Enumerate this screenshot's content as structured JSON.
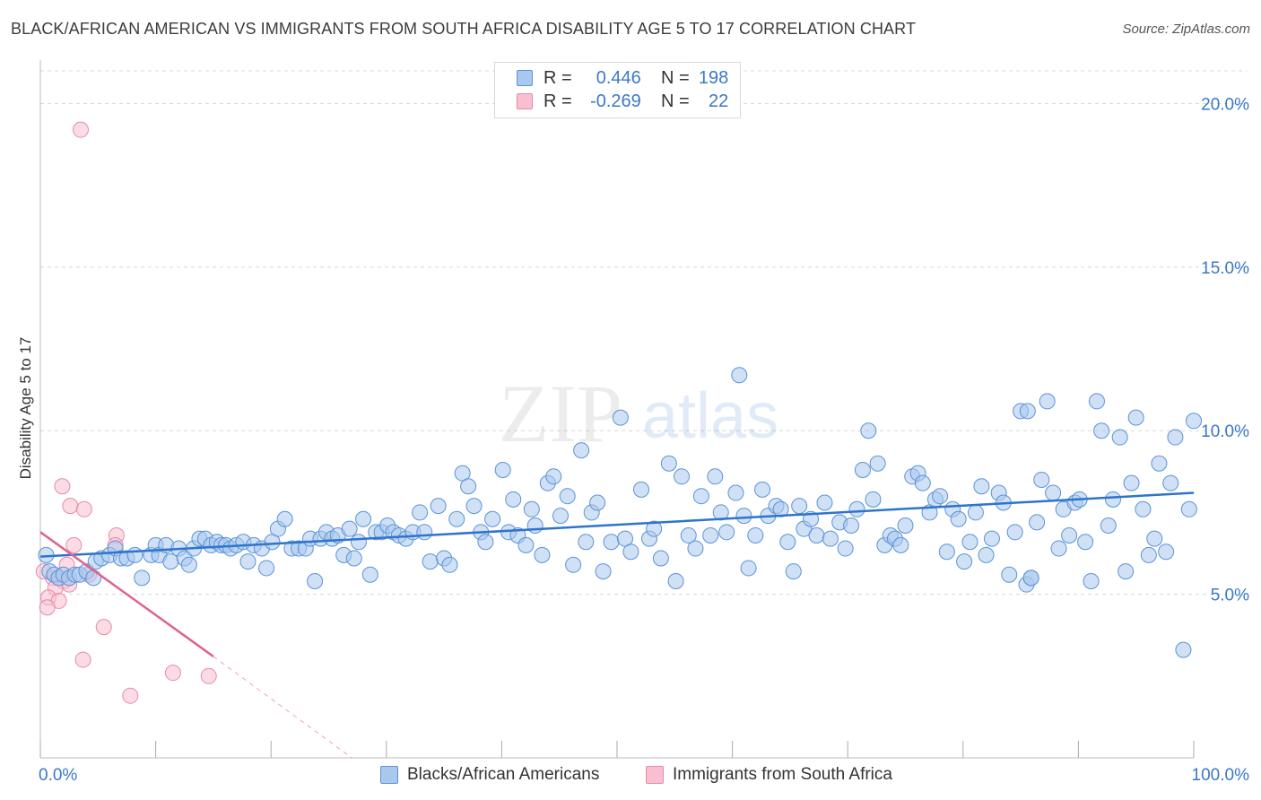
{
  "title": "BLACK/AFRICAN AMERICAN VS IMMIGRANTS FROM SOUTH AFRICA DISABILITY AGE 5 TO 17 CORRELATION CHART",
  "source": "Source: ZipAtlas.com",
  "watermark": {
    "zip": "ZIP",
    "atlas": "atlas"
  },
  "legend": {
    "rows": [
      {
        "r_label": "R =",
        "r_value": "0.446",
        "n_label": "N =",
        "n_value": "198"
      },
      {
        "r_label": "R =",
        "r_value": "-0.269",
        "n_label": "N =",
        "n_value": "22"
      }
    ]
  },
  "bottom_legend": [
    "Blacks/African Americans",
    "Immigrants from South Africa"
  ],
  "colors": {
    "blue_fill": "#a9c8ee",
    "blue_stroke": "#5b93d6",
    "blue_line": "#2e74cc",
    "pink_fill": "#f7bfd0",
    "pink_stroke": "#e98aa8",
    "pink_line": "#e0628f",
    "axis_text": "#3a78c9",
    "grid": "#d8d8d8"
  },
  "chart_data": {
    "type": "scatter",
    "title": "BLACK/AFRICAN AMERICAN VS IMMIGRANTS FROM SOUTH AFRICA DISABILITY AGE 5 TO 17 CORRELATION CHART",
    "xlabel": "",
    "ylabel": "Disability Age 5 to 17",
    "xlim": [
      0,
      100
    ],
    "ylim": [
      0,
      21
    ],
    "x_ticks": [
      0,
      10,
      20,
      30,
      40,
      50,
      60,
      70,
      80,
      90,
      100
    ],
    "x_tick_labels": [
      "0.0%",
      "100.0%"
    ],
    "y_ticks": [
      5,
      10,
      15,
      20
    ],
    "y_tick_labels": [
      "5.0%",
      "10.0%",
      "15.0%",
      "20.0%"
    ],
    "grid": "horizontal dashed",
    "series": [
      {
        "name": "Blacks/African Americans",
        "trend": {
          "x": [
            0,
            100
          ],
          "y": [
            6.15,
            8.1
          ]
        },
        "points": [
          [
            0.5,
            6.2
          ],
          [
            0.8,
            5.7
          ],
          [
            1.2,
            5.6
          ],
          [
            1.6,
            5.5
          ],
          [
            2.0,
            5.6
          ],
          [
            2.5,
            5.5
          ],
          [
            3.0,
            5.6
          ],
          [
            3.4,
            5.6
          ],
          [
            4.0,
            5.7
          ],
          [
            4.6,
            5.5
          ],
          [
            4.8,
            6.0
          ],
          [
            5.3,
            6.1
          ],
          [
            6.0,
            6.2
          ],
          [
            6.5,
            6.4
          ],
          [
            7.0,
            6.1
          ],
          [
            7.5,
            6.1
          ],
          [
            8.2,
            6.2
          ],
          [
            8.8,
            5.5
          ],
          [
            9.6,
            6.2
          ],
          [
            10.0,
            6.5
          ],
          [
            10.3,
            6.2
          ],
          [
            10.9,
            6.5
          ],
          [
            11.3,
            6.0
          ],
          [
            12.0,
            6.4
          ],
          [
            12.5,
            6.1
          ],
          [
            12.9,
            5.9
          ],
          [
            13.3,
            6.4
          ],
          [
            13.8,
            6.7
          ],
          [
            14.3,
            6.7
          ],
          [
            14.8,
            6.5
          ],
          [
            15.3,
            6.6
          ],
          [
            15.7,
            6.5
          ],
          [
            16.1,
            6.5
          ],
          [
            16.5,
            6.4
          ],
          [
            17.0,
            6.5
          ],
          [
            17.6,
            6.6
          ],
          [
            18.0,
            6.0
          ],
          [
            18.5,
            6.5
          ],
          [
            19.2,
            6.4
          ],
          [
            19.6,
            5.8
          ],
          [
            20.1,
            6.6
          ],
          [
            20.6,
            7.0
          ],
          [
            21.2,
            7.3
          ],
          [
            21.8,
            6.4
          ],
          [
            22.4,
            6.4
          ],
          [
            23.0,
            6.4
          ],
          [
            23.4,
            6.7
          ],
          [
            23.8,
            5.4
          ],
          [
            24.3,
            6.7
          ],
          [
            24.8,
            6.9
          ],
          [
            25.3,
            6.7
          ],
          [
            25.8,
            6.8
          ],
          [
            26.3,
            6.2
          ],
          [
            26.8,
            7.0
          ],
          [
            27.2,
            6.1
          ],
          [
            27.6,
            6.6
          ],
          [
            28.0,
            7.3
          ],
          [
            28.6,
            5.6
          ],
          [
            29.1,
            6.9
          ],
          [
            29.6,
            6.9
          ],
          [
            30.1,
            7.1
          ],
          [
            30.6,
            6.9
          ],
          [
            31.1,
            6.8
          ],
          [
            31.7,
            6.7
          ],
          [
            32.3,
            6.9
          ],
          [
            32.9,
            7.5
          ],
          [
            33.3,
            6.9
          ],
          [
            33.8,
            6.0
          ],
          [
            34.5,
            7.7
          ],
          [
            35.0,
            6.1
          ],
          [
            35.5,
            5.9
          ],
          [
            36.1,
            7.3
          ],
          [
            36.6,
            8.7
          ],
          [
            37.1,
            8.3
          ],
          [
            37.6,
            7.7
          ],
          [
            38.2,
            6.9
          ],
          [
            38.6,
            6.6
          ],
          [
            39.2,
            7.3
          ],
          [
            40.1,
            8.8
          ],
          [
            40.6,
            6.9
          ],
          [
            41.0,
            7.9
          ],
          [
            41.4,
            6.8
          ],
          [
            42.1,
            6.5
          ],
          [
            42.6,
            7.6
          ],
          [
            42.9,
            7.1
          ],
          [
            43.5,
            6.2
          ],
          [
            44.0,
            8.4
          ],
          [
            44.5,
            8.6
          ],
          [
            45.1,
            7.4
          ],
          [
            45.7,
            8.0
          ],
          [
            46.2,
            5.9
          ],
          [
            46.9,
            9.4
          ],
          [
            47.3,
            6.6
          ],
          [
            47.8,
            7.5
          ],
          [
            48.3,
            7.8
          ],
          [
            48.8,
            5.7
          ],
          [
            49.5,
            6.6
          ],
          [
            50.3,
            10.4
          ],
          [
            50.7,
            6.7
          ],
          [
            51.2,
            6.3
          ],
          [
            52.1,
            8.2
          ],
          [
            52.8,
            6.7
          ],
          [
            53.2,
            7.0
          ],
          [
            53.8,
            6.1
          ],
          [
            54.5,
            9.0
          ],
          [
            55.1,
            5.4
          ],
          [
            55.6,
            8.6
          ],
          [
            56.2,
            6.8
          ],
          [
            56.8,
            6.4
          ],
          [
            57.3,
            8.0
          ],
          [
            58.1,
            6.8
          ],
          [
            58.5,
            8.6
          ],
          [
            59.0,
            7.5
          ],
          [
            59.5,
            6.9
          ],
          [
            60.3,
            8.1
          ],
          [
            61.0,
            7.4
          ],
          [
            61.4,
            5.8
          ],
          [
            62.0,
            6.8
          ],
          [
            62.6,
            8.2
          ],
          [
            63.1,
            7.4
          ],
          [
            63.8,
            7.7
          ],
          [
            64.2,
            7.6
          ],
          [
            64.8,
            6.6
          ],
          [
            65.3,
            5.7
          ],
          [
            65.8,
            7.7
          ],
          [
            66.2,
            7.0
          ],
          [
            66.8,
            7.3
          ],
          [
            67.3,
            6.8
          ],
          [
            68.0,
            7.8
          ],
          [
            68.5,
            6.7
          ],
          [
            69.3,
            7.2
          ],
          [
            69.8,
            6.4
          ],
          [
            70.3,
            7.1
          ],
          [
            70.8,
            7.6
          ],
          [
            71.3,
            8.8
          ],
          [
            71.8,
            10.0
          ],
          [
            72.2,
            7.9
          ],
          [
            72.6,
            9.0
          ],
          [
            73.2,
            6.5
          ],
          [
            73.7,
            6.8
          ],
          [
            74.1,
            6.7
          ],
          [
            74.6,
            6.5
          ],
          [
            75.0,
            7.1
          ],
          [
            75.6,
            8.6
          ],
          [
            76.1,
            8.7
          ],
          [
            76.5,
            8.4
          ],
          [
            77.1,
            7.5
          ],
          [
            77.6,
            7.9
          ],
          [
            78.0,
            8.0
          ],
          [
            78.6,
            6.3
          ],
          [
            79.1,
            7.6
          ],
          [
            79.6,
            7.3
          ],
          [
            80.1,
            6.0
          ],
          [
            80.6,
            6.6
          ],
          [
            81.1,
            7.5
          ],
          [
            81.6,
            8.3
          ],
          [
            82.0,
            6.2
          ],
          [
            82.5,
            6.7
          ],
          [
            83.1,
            8.1
          ],
          [
            83.5,
            7.8
          ],
          [
            84.0,
            5.6
          ],
          [
            84.5,
            6.9
          ],
          [
            85.0,
            10.6
          ],
          [
            85.5,
            5.3
          ],
          [
            85.9,
            5.5
          ],
          [
            86.4,
            7.2
          ],
          [
            86.8,
            8.5
          ],
          [
            87.3,
            10.9
          ],
          [
            87.8,
            8.1
          ],
          [
            88.3,
            6.4
          ],
          [
            88.7,
            7.6
          ],
          [
            89.2,
            6.8
          ],
          [
            89.7,
            7.8
          ],
          [
            90.1,
            7.9
          ],
          [
            90.6,
            6.6
          ],
          [
            91.1,
            5.4
          ],
          [
            91.6,
            10.9
          ],
          [
            92.0,
            10.0
          ],
          [
            92.6,
            7.1
          ],
          [
            93.0,
            7.9
          ],
          [
            93.6,
            9.8
          ],
          [
            94.1,
            5.7
          ],
          [
            94.6,
            8.4
          ],
          [
            95.0,
            10.4
          ],
          [
            95.6,
            7.6
          ],
          [
            96.1,
            6.2
          ],
          [
            96.6,
            6.7
          ],
          [
            97.0,
            9.0
          ],
          [
            97.6,
            6.3
          ],
          [
            98.0,
            8.4
          ],
          [
            98.4,
            9.8
          ],
          [
            99.1,
            3.3
          ],
          [
            99.6,
            7.6
          ],
          [
            100.0,
            10.3
          ],
          [
            60.6,
            11.7
          ],
          [
            85.6,
            10.6
          ],
          [
            85.9,
            5.5
          ]
        ]
      },
      {
        "name": "Immigrants from South Africa",
        "trend": {
          "x": [
            0,
            15
          ],
          "y": [
            6.9,
            3.1
          ]
        },
        "trend_dashed": {
          "x": [
            15,
            27
          ],
          "y": [
            3.1,
            0
          ]
        },
        "points": [
          [
            3.5,
            19.2
          ],
          [
            1.9,
            8.3
          ],
          [
            2.6,
            7.7
          ],
          [
            3.8,
            7.6
          ],
          [
            2.9,
            6.5
          ],
          [
            6.6,
            6.8
          ],
          [
            6.5,
            6.5
          ],
          [
            0.3,
            5.7
          ],
          [
            1.1,
            5.5
          ],
          [
            2.0,
            5.4
          ],
          [
            2.5,
            5.3
          ],
          [
            1.3,
            5.2
          ],
          [
            0.7,
            4.9
          ],
          [
            1.6,
            4.8
          ],
          [
            0.6,
            4.6
          ],
          [
            2.3,
            5.9
          ],
          [
            4.2,
            5.6
          ],
          [
            5.5,
            4.0
          ],
          [
            3.7,
            3.0
          ],
          [
            11.5,
            2.6
          ],
          [
            14.6,
            2.5
          ],
          [
            7.8,
            1.9
          ]
        ]
      }
    ]
  }
}
